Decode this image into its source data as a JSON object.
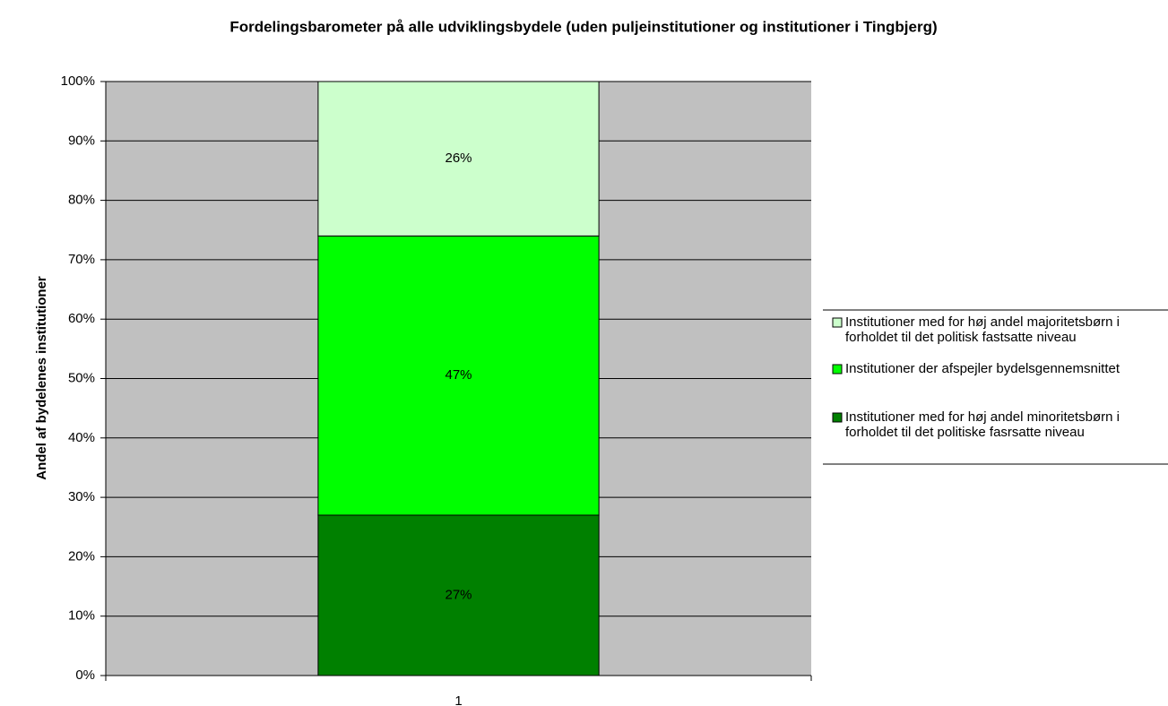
{
  "chart_data": {
    "type": "bar",
    "stacked": true,
    "title": "Fordelingsbarometer på alle udviklingsbydele (uden puljeinstitutioner og institutioner i Tingbjerg)",
    "y_label": "Andel af bydelenes institutioner",
    "categories": [
      "1"
    ],
    "series": [
      {
        "name": "Institutioner med for høj andel minoritetsbørn i\nforholdet til det politiske fasrsatte niveau",
        "color": "#008000",
        "values": [
          27
        ],
        "value_labels": [
          "27%"
        ]
      },
      {
        "name": "Institutioner der afspejler bydelsgennemsnittet",
        "color": "#00ff00",
        "values": [
          47
        ],
        "value_labels": [
          "47%"
        ]
      },
      {
        "name": "Institutioner med for høj andel majoritetsbørn i\nforholdet til det politisk fastsatte niveau",
        "color": "#ccffcc",
        "values": [
          26
        ],
        "value_labels": [
          "26%"
        ]
      }
    ],
    "ylim": [
      0,
      100
    ],
    "yticks": [
      {
        "value": 0,
        "label": "0%"
      },
      {
        "value": 10,
        "label": "10%"
      },
      {
        "value": 20,
        "label": "20%"
      },
      {
        "value": 30,
        "label": "30%"
      },
      {
        "value": 40,
        "label": "40%"
      },
      {
        "value": 50,
        "label": "50%"
      },
      {
        "value": 60,
        "label": "60%"
      },
      {
        "value": 70,
        "label": "70%"
      },
      {
        "value": 80,
        "label": "80%"
      },
      {
        "value": 90,
        "label": "90%"
      },
      {
        "value": 100,
        "label": "100%"
      }
    ],
    "grid": true,
    "plot_background": "#c0c0c0",
    "legend": "right"
  }
}
